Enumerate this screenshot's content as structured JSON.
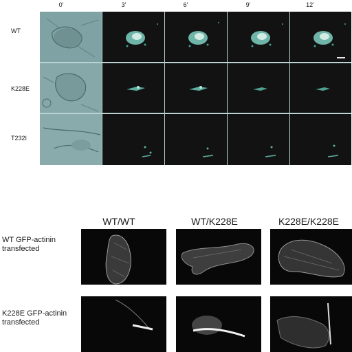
{
  "top_figure": {
    "time_labels": [
      "0'",
      "3'",
      "6'",
      "9'",
      "12'"
    ],
    "row_labels": [
      "WT",
      "K228E",
      "T232I"
    ]
  },
  "bottom_figure": {
    "column_labels": [
      "WT/WT",
      "WT/K228E",
      "K228E/K228E"
    ],
    "row_labels": [
      [
        "WT GFP-actinin",
        "transfected"
      ],
      [
        "K228E GFP-actinin",
        "transfected"
      ]
    ]
  }
}
